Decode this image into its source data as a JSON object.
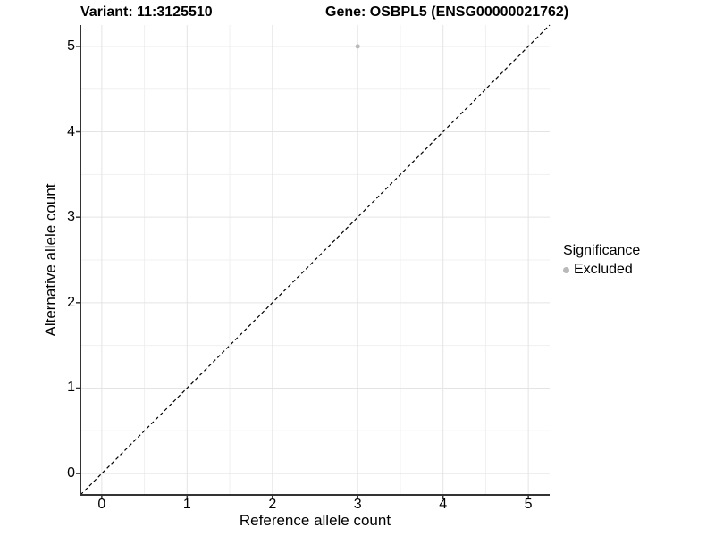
{
  "chart_data": {
    "type": "scatter",
    "title_left": "Variant: 11:3125510",
    "title_right": "Gene: OSBPL5 (ENSG00000021762)",
    "xlabel": "Reference allele count",
    "ylabel": "Alternative allele count",
    "xlim": [
      -0.25,
      5.25
    ],
    "ylim": [
      -0.25,
      5.25
    ],
    "x_major_ticks": [
      0,
      1,
      2,
      3,
      4,
      5
    ],
    "y_major_ticks": [
      0,
      1,
      2,
      3,
      4,
      5
    ],
    "minor_ticks": [
      0.5,
      1.5,
      2.5,
      3.5,
      4.5
    ],
    "grid": true,
    "reference_line": {
      "style": "dashed",
      "slope": 1,
      "intercept": 0,
      "color": "#000000"
    },
    "series": [
      {
        "name": "Excluded",
        "color": "#b9b9b9",
        "points": [
          {
            "x": 3,
            "y": 5
          }
        ]
      }
    ],
    "legend": {
      "title": "Significance",
      "position": "right",
      "entries": [
        {
          "label": "Excluded",
          "color": "#b9b9b9"
        }
      ]
    }
  },
  "colors": {
    "background": "#ffffff",
    "grid_major": "#e4e4e4",
    "grid_minor": "#f0f0f0",
    "axis_line": "#333333",
    "tick_mark": "#333333",
    "text": "#000000",
    "excluded_point": "#b9b9b9"
  }
}
